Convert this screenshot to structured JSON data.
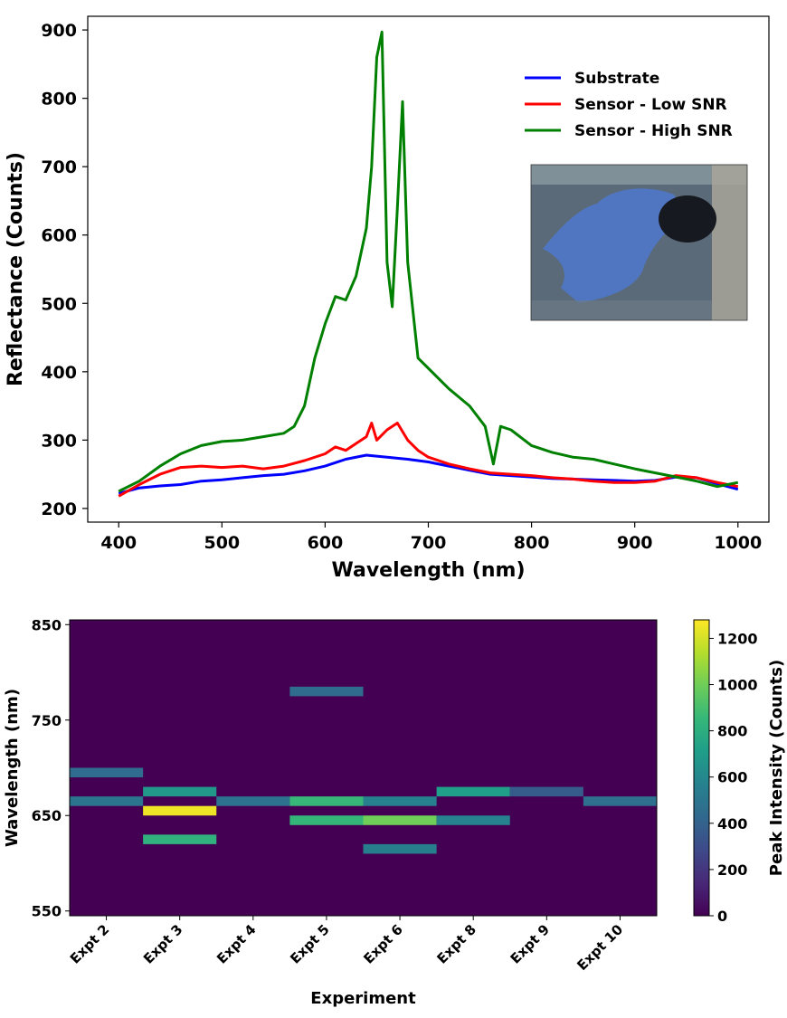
{
  "chart_data": [
    {
      "type": "line",
      "title": "",
      "xlabel": "Wavelength (nm)",
      "ylabel": "Reflectance (Counts)",
      "xlim": [
        370,
        1030
      ],
      "ylim": [
        180,
        920
      ],
      "x_ticks": [
        400,
        500,
        600,
        700,
        800,
        900,
        1000
      ],
      "y_ticks": [
        200,
        300,
        400,
        500,
        600,
        700,
        800,
        900
      ],
      "legend_position": "top-right",
      "grid": false,
      "series": [
        {
          "name": "Substrate",
          "color": "#0000ff",
          "x": [
            400,
            420,
            440,
            460,
            480,
            500,
            520,
            540,
            560,
            580,
            600,
            620,
            640,
            660,
            680,
            700,
            720,
            740,
            760,
            780,
            800,
            820,
            840,
            860,
            880,
            900,
            920,
            940,
            960,
            980,
            1000
          ],
          "y": [
            222,
            230,
            233,
            235,
            240,
            242,
            245,
            248,
            250,
            255,
            262,
            272,
            278,
            275,
            272,
            268,
            262,
            256,
            250,
            248,
            246,
            244,
            243,
            242,
            241,
            240,
            241,
            246,
            245,
            236,
            228
          ]
        },
        {
          "name": "Sensor - Low SNR",
          "color": "#ff0000",
          "x": [
            400,
            420,
            440,
            460,
            480,
            500,
            520,
            540,
            560,
            580,
            600,
            610,
            620,
            630,
            640,
            645,
            650,
            660,
            670,
            680,
            690,
            700,
            720,
            740,
            760,
            780,
            800,
            820,
            840,
            860,
            880,
            900,
            920,
            940,
            960,
            980,
            1000
          ],
          "y": [
            218,
            235,
            250,
            260,
            262,
            260,
            262,
            258,
            262,
            270,
            280,
            290,
            285,
            295,
            305,
            325,
            300,
            315,
            325,
            300,
            285,
            275,
            265,
            258,
            252,
            250,
            248,
            245,
            243,
            240,
            238,
            238,
            240,
            248,
            245,
            238,
            232
          ]
        },
        {
          "name": "Sensor - High SNR",
          "color": "#008000",
          "x": [
            400,
            420,
            440,
            460,
            480,
            500,
            520,
            540,
            560,
            570,
            580,
            590,
            600,
            610,
            620,
            630,
            640,
            645,
            650,
            655,
            660,
            665,
            670,
            675,
            680,
            690,
            700,
            720,
            740,
            755,
            763,
            770,
            780,
            800,
            820,
            840,
            860,
            880,
            900,
            920,
            940,
            960,
            980,
            1000
          ],
          "y": [
            225,
            240,
            262,
            280,
            292,
            298,
            300,
            305,
            310,
            320,
            350,
            420,
            470,
            510,
            505,
            540,
            610,
            700,
            860,
            897,
            560,
            495,
            640,
            795,
            560,
            420,
            405,
            375,
            350,
            320,
            265,
            320,
            315,
            292,
            282,
            275,
            272,
            265,
            258,
            252,
            246,
            240,
            232,
            238
          ]
        }
      ],
      "inset_image": "false-color RGB image"
    },
    {
      "type": "heatmap",
      "title": "",
      "xlabel": "Experiment",
      "ylabel": "Wavelength (nm)",
      "categories": [
        "Expt 2",
        "Expt 3",
        "Expt 4",
        "Expt 5",
        "Expt 6",
        "Expt 8",
        "Expt 9",
        "Expt 10"
      ],
      "ylim": [
        545,
        855
      ],
      "y_ticks": [
        550,
        650,
        750,
        850
      ],
      "band_height_nm": 10,
      "colorbar": {
        "label": "Peak Intensity (Counts)",
        "range": [
          0,
          1280
        ],
        "ticks": [
          0,
          200,
          400,
          600,
          800,
          1000,
          1200
        ]
      },
      "cells": [
        {
          "category": "Expt 2",
          "wavelength": 695,
          "value": 450
        },
        {
          "category": "Expt 2",
          "wavelength": 665,
          "value": 500
        },
        {
          "category": "Expt 3",
          "wavelength": 675,
          "value": 680
        },
        {
          "category": "Expt 3",
          "wavelength": 655,
          "value": 1250
        },
        {
          "category": "Expt 3",
          "wavelength": 625,
          "value": 820
        },
        {
          "category": "Expt 4",
          "wavelength": 665,
          "value": 480
        },
        {
          "category": "Expt 5",
          "wavelength": 780,
          "value": 450
        },
        {
          "category": "Expt 5",
          "wavelength": 665,
          "value": 860
        },
        {
          "category": "Expt 5",
          "wavelength": 645,
          "value": 850
        },
        {
          "category": "Expt 6",
          "wavelength": 665,
          "value": 560
        },
        {
          "category": "Expt 6",
          "wavelength": 645,
          "value": 1000
        },
        {
          "category": "Expt 6",
          "wavelength": 615,
          "value": 550
        },
        {
          "category": "Expt 8",
          "wavelength": 675,
          "value": 720
        },
        {
          "category": "Expt 8",
          "wavelength": 645,
          "value": 570
        },
        {
          "category": "Expt 9",
          "wavelength": 675,
          "value": 370
        },
        {
          "category": "Expt 10",
          "wavelength": 665,
          "value": 470
        }
      ]
    }
  ]
}
